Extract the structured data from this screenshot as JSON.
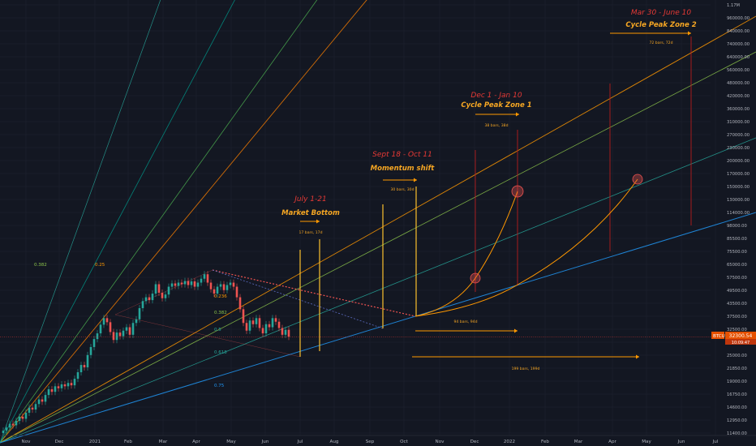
{
  "theme": {
    "background": "#131722",
    "grid": "#1e2230",
    "axis_text": "#b2b5be",
    "orange": "#f5a623",
    "red": "#e53935",
    "teal": "#26a69a",
    "blue": "#2196f3",
    "up": "#26a69a",
    "down": "#ef5350",
    "price_tag": "#e65100"
  },
  "chart_data": {
    "type": "candlestick",
    "symbol": "BTCUSD",
    "last_price": "32300.54",
    "last_price_sub": "10:09:47",
    "y_scale": "log",
    "y_ticks": [
      "1.17M",
      "960000.00",
      "840000.00",
      "740000.00",
      "640000.00",
      "560000.00",
      "480000.00",
      "420000.00",
      "360000.00",
      "310000.00",
      "270000.00",
      "230000.00",
      "200000.00",
      "170000.00",
      "150000.00",
      "130000.00",
      "114000.00",
      "98000.00",
      "85500.00",
      "75500.00",
      "65000.00",
      "57500.00",
      "49500.00",
      "43500.00",
      "37500.00",
      "32500.00",
      "28500.00",
      "25000.00",
      "21850.00",
      "19000.00",
      "16750.00",
      "14600.00",
      "12950.00",
      "11400.00"
    ],
    "x_ticks": [
      "Nov",
      "Dec",
      "2021",
      "Feb",
      "Mar",
      "Apr",
      "May",
      "Jun",
      "Jul",
      "Aug",
      "Sep",
      "Oct",
      "Nov",
      "Dec",
      "2022",
      "Feb",
      "Mar",
      "Apr",
      "May",
      "Jun",
      "Jul"
    ],
    "fib_labels": [
      "0.382",
      "0.25",
      "0.236",
      "0.382",
      "0.5",
      "0.618",
      "0.75"
    ],
    "annotations": [
      {
        "date": "July 1-21",
        "title": "Market Bottom",
        "range": "17 bars, 17d"
      },
      {
        "date": "Sept 18 - Oct 11",
        "title": "Momentum shift",
        "range": "30 bars, 30d"
      },
      {
        "date": "Dec 1 - Jan 10",
        "title": "Cycle Peak Zone 1",
        "range": "38 bars, 38d"
      },
      {
        "date": "Mar 30 - June 10",
        "title": "Cycle Peak Zone 2",
        "range": "72 bars, 72d"
      }
    ],
    "measures": [
      "94 bars, 94d",
      "199 bars, 199d"
    ],
    "candles": [
      [
        11400,
        11700
      ],
      [
        11700,
        12100
      ],
      [
        12100,
        12600
      ],
      [
        12600,
        12400
      ],
      [
        12400,
        13000
      ],
      [
        13000,
        13600
      ],
      [
        13600,
        13300
      ],
      [
        13300,
        14200
      ],
      [
        14200,
        15000
      ],
      [
        15000,
        14700
      ],
      [
        14700,
        15600
      ],
      [
        15600,
        16400
      ],
      [
        16400,
        16000
      ],
      [
        16000,
        17200
      ],
      [
        17200,
        18300
      ],
      [
        18300,
        17800
      ],
      [
        17800,
        18900
      ],
      [
        18900,
        18500
      ],
      [
        18500,
        19300
      ],
      [
        19300,
        18900
      ],
      [
        18900,
        19600
      ],
      [
        19600,
        19100
      ],
      [
        19100,
        20500
      ],
      [
        20500,
        22000
      ],
      [
        22000,
        23800
      ],
      [
        23800,
        23200
      ],
      [
        23200,
        26500
      ],
      [
        26500,
        28900
      ],
      [
        28900,
        31500
      ],
      [
        31500,
        33500
      ],
      [
        33500,
        36800
      ],
      [
        36800,
        39500
      ],
      [
        39500,
        37800
      ],
      [
        37800,
        34000
      ],
      [
        34000,
        31200
      ],
      [
        31200,
        33800
      ],
      [
        33800,
        32500
      ],
      [
        32500,
        34500
      ],
      [
        34500,
        35800
      ],
      [
        35800,
        33000
      ],
      [
        33000,
        37500
      ],
      [
        37500,
        39000
      ],
      [
        39000,
        44000
      ],
      [
        44000,
        47500
      ],
      [
        47500,
        49500
      ],
      [
        49500,
        48000
      ],
      [
        48000,
        51500
      ],
      [
        51500,
        57000
      ],
      [
        57000,
        52000
      ],
      [
        52000,
        49000
      ],
      [
        49000,
        51000
      ],
      [
        51000,
        55500
      ],
      [
        55500,
        57500
      ],
      [
        57500,
        56000
      ],
      [
        56000,
        58000
      ],
      [
        58000,
        57000
      ],
      [
        57000,
        59000
      ],
      [
        59000,
        56500
      ],
      [
        56500,
        58800
      ],
      [
        58800,
        55500
      ],
      [
        55500,
        58000
      ],
      [
        58000,
        60500
      ],
      [
        60500,
        63500
      ],
      [
        63500,
        58000
      ],
      [
        58000,
        54000
      ],
      [
        54000,
        51500
      ],
      [
        51500,
        55500
      ],
      [
        55500,
        57000
      ],
      [
        57000,
        53500
      ],
      [
        53500,
        56500
      ],
      [
        56500,
        58000
      ],
      [
        58000,
        55500
      ],
      [
        55500,
        49500
      ],
      [
        49500,
        43500
      ],
      [
        43500,
        37500
      ],
      [
        37500,
        34500
      ],
      [
        34500,
        38500
      ],
      [
        38500,
        37000
      ],
      [
        37000,
        39500
      ],
      [
        39500,
        35500
      ],
      [
        35500,
        33500
      ],
      [
        33500,
        37000
      ],
      [
        37000,
        35800
      ],
      [
        35800,
        39500
      ],
      [
        39500,
        38000
      ],
      [
        38000,
        35500
      ],
      [
        35500,
        33000
      ],
      [
        33000,
        34800
      ],
      [
        34800,
        32300
      ]
    ]
  }
}
